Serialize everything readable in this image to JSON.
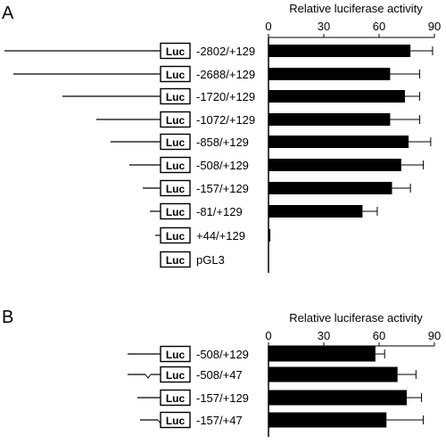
{
  "chart_data": [
    {
      "type": "bar",
      "orientation": "horizontal",
      "panel": "A",
      "xlabel": "Relative luciferase activity",
      "xlim": [
        0,
        90
      ],
      "ticks": [
        0,
        30,
        60,
        90
      ],
      "reporter_label": "Luc",
      "categories": [
        "-2802/+129",
        "-2688/+129",
        "-1720/+129",
        "-1072/+129",
        "-858/+129",
        "-508/+129",
        "-157/+129",
        "-81/+129",
        "+44/+129",
        "pGL3"
      ],
      "values": [
        77,
        66,
        74,
        66,
        76,
        72,
        67,
        51,
        1,
        0
      ],
      "errors": [
        12,
        16,
        8,
        16,
        12,
        12,
        10,
        8,
        0,
        0
      ]
    },
    {
      "type": "bar",
      "orientation": "horizontal",
      "panel": "B",
      "xlabel": "Relative luciferase activity",
      "xlim": [
        0,
        90
      ],
      "ticks": [
        0,
        30,
        60,
        90
      ],
      "reporter_label": "Luc",
      "categories": [
        "-508/+129",
        "-508/+47",
        "-157/+129",
        "-157/+47"
      ],
      "values": [
        58,
        70,
        75,
        64
      ],
      "errors": [
        5,
        10,
        8,
        20
      ]
    }
  ]
}
